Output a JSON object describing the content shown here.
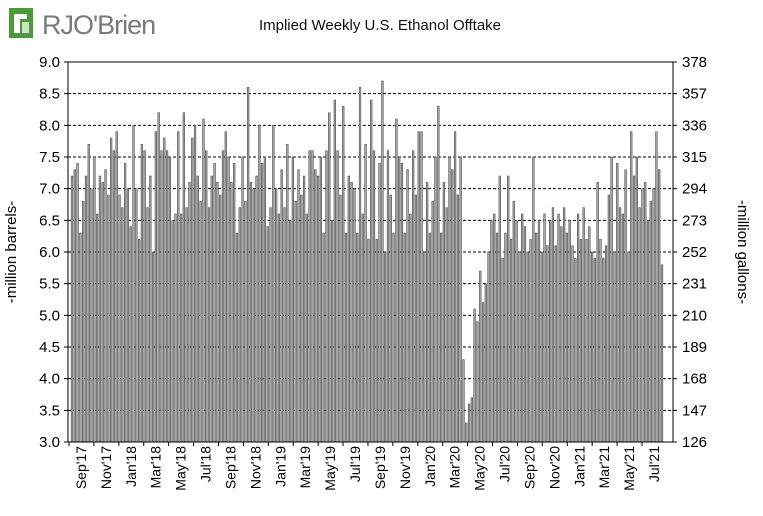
{
  "logo": {
    "text": "RJO'Brien",
    "accent_color": "#4a9a3a"
  },
  "chart_data": {
    "type": "bar",
    "title": "Implied  Weekly U.S. Ethanol Offtake",
    "ylabel": "-million barrels-",
    "y2label": "-million gallons-",
    "ylim": [
      3.0,
      9.0
    ],
    "y2lim": [
      126,
      378
    ],
    "y_ticks": [
      "3.0",
      "3.5",
      "4.0",
      "4.5",
      "5.0",
      "5.5",
      "6.0",
      "6.5",
      "7.0",
      "7.5",
      "8.0",
      "8.5",
      "9.0"
    ],
    "y2_ticks": [
      "126",
      "147",
      "168",
      "189",
      "210",
      "231",
      "252",
      "273",
      "294",
      "315",
      "336",
      "357",
      "378"
    ],
    "x_ticks": [
      "Sep'17",
      "Nov'17",
      "Jan'18",
      "Mar'18",
      "May'18",
      "Jul'18",
      "Sep'18",
      "Nov'18",
      "Jan'19",
      "Mar'19",
      "May'19",
      "Jul'19",
      "Sep'19",
      "Nov'19",
      "Jan'20",
      "Mar'20",
      "May'20",
      "Jul'20",
      "Sep'20",
      "Nov'20",
      "Jan'21",
      "Mar'21",
      "May'21",
      "Jul'21"
    ],
    "bar_color": "#a8a8a8",
    "grid": "horizontal dashed",
    "values": [
      7.2,
      7.3,
      7.4,
      6.3,
      6.8,
      7.2,
      7.7,
      7.0,
      7.5,
      6.6,
      7.2,
      7.1,
      7.3,
      6.9,
      7.8,
      7.6,
      7.9,
      6.9,
      6.7,
      7.4,
      7.0,
      6.4,
      8.0,
      7.0,
      6.2,
      7.7,
      7.6,
      6.7,
      7.2,
      6.0,
      7.9,
      8.2,
      7.6,
      7.8,
      7.6,
      7.5,
      6.5,
      6.6,
      7.9,
      6.6,
      8.2,
      6.7,
      7.1,
      7.8,
      8.0,
      7.2,
      6.8,
      8.1,
      7.6,
      6.7,
      7.2,
      7.4,
      7.1,
      6.9,
      7.6,
      7.9,
      7.5,
      7.1,
      7.4,
      6.3,
      6.7,
      7.5,
      6.8,
      8.6,
      7.1,
      7.0,
      7.2,
      8.0,
      7.4,
      7.5,
      6.4,
      6.7,
      8.0,
      7.0,
      6.6,
      7.3,
      6.7,
      7.7,
      6.5,
      7.5,
      6.8,
      7.3,
      6.9,
      7.2,
      6.6,
      7.6,
      7.6,
      7.3,
      7.2,
      7.5,
      6.3,
      7.6,
      8.2,
      6.5,
      8.4,
      7.6,
      6.9,
      8.3,
      6.3,
      7.2,
      7.1,
      7.0,
      6.3,
      8.6,
      6.6,
      7.7,
      6.2,
      8.4,
      7.6,
      6.2,
      7.4,
      8.7,
      6.0,
      7.6,
      6.9,
      6.3,
      8.1,
      7.5,
      7.4,
      6.3,
      7.3,
      6.6,
      7.6,
      6.9,
      7.9,
      7.9,
      6.0,
      7.1,
      6.3,
      6.8,
      7.5,
      8.3,
      6.3,
      7.1,
      6.7,
      7.5,
      7.3,
      7.9,
      6.9,
      7.5,
      4.3,
      3.3,
      3.6,
      3.7,
      5.1,
      4.9,
      5.7,
      5.2,
      5.5,
      6.0,
      6.5,
      6.6,
      6.3,
      7.2,
      5.9,
      6.3,
      7.2,
      6.2,
      6.8,
      6.5,
      6.0,
      6.6,
      6.4,
      6.0,
      6.2,
      7.5,
      6.3,
      6.5,
      6.0,
      6.6,
      6.1,
      6.5,
      6.7,
      6.1,
      6.6,
      6.4,
      6.7,
      6.3,
      6.5,
      6.1,
      5.9,
      6.6,
      6.2,
      6.7,
      6.2,
      6.4,
      6.0,
      5.9,
      7.1,
      6.2,
      5.9,
      6.1,
      6.9,
      7.5,
      6.0,
      7.4,
      6.7,
      6.6,
      7.3,
      6.0,
      7.9,
      7.2,
      7.5,
      6.7,
      7.0,
      7.1,
      6.5,
      6.8,
      7.0,
      7.9,
      7.3,
      5.8
    ]
  }
}
